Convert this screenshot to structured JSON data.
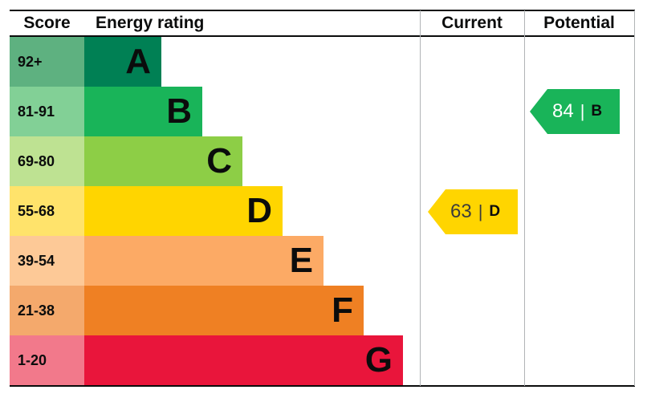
{
  "header": {
    "score": "Score",
    "rating": "Energy rating",
    "current": "Current",
    "potential": "Potential"
  },
  "bands": [
    {
      "range": "92+",
      "letter": "A",
      "color": "#008054",
      "tint": "#5eb180"
    },
    {
      "range": "81-91",
      "letter": "B",
      "color": "#19b459",
      "tint": "#82d096"
    },
    {
      "range": "69-80",
      "letter": "C",
      "color": "#8dce46",
      "tint": "#bee292"
    },
    {
      "range": "55-68",
      "letter": "D",
      "color": "#ffd500",
      "tint": "#ffe36b"
    },
    {
      "range": "39-54",
      "letter": "E",
      "color": "#fcaa65",
      "tint": "#fdc997"
    },
    {
      "range": "21-38",
      "letter": "F",
      "color": "#ef8023",
      "tint": "#f4a96c"
    },
    {
      "range": "1-20",
      "letter": "G",
      "color": "#e9153b",
      "tint": "#f2798b"
    }
  ],
  "current": {
    "value": "63",
    "divider": "|",
    "letter": "D",
    "color": "#ffd500",
    "value_color": "#3c3c3b",
    "letter_color": "#0b0c0c"
  },
  "potential": {
    "value": "84",
    "divider": "|",
    "letter": "B",
    "color": "#19b459",
    "value_color": "#ffffff",
    "letter_color": "#0b0c0c"
  },
  "chart_data": {
    "type": "bar",
    "orientation": "horizontal",
    "title": "Energy rating",
    "categories": [
      "A",
      "B",
      "C",
      "D",
      "E",
      "F",
      "G"
    ],
    "score_ranges": [
      "92+",
      "81-91",
      "69-80",
      "55-68",
      "39-54",
      "21-38",
      "1-20"
    ],
    "band_colors": [
      "#008054",
      "#19b459",
      "#8dce46",
      "#ffd500",
      "#fcaa65",
      "#ef8023",
      "#e9153b"
    ],
    "column_headers": [
      "Score",
      "Energy rating",
      "Current",
      "Potential"
    ],
    "markers": [
      {
        "name": "Current",
        "score": 63,
        "band": "D"
      },
      {
        "name": "Potential",
        "score": 84,
        "band": "B"
      }
    ],
    "legend_position": "none",
    "grid": false
  }
}
